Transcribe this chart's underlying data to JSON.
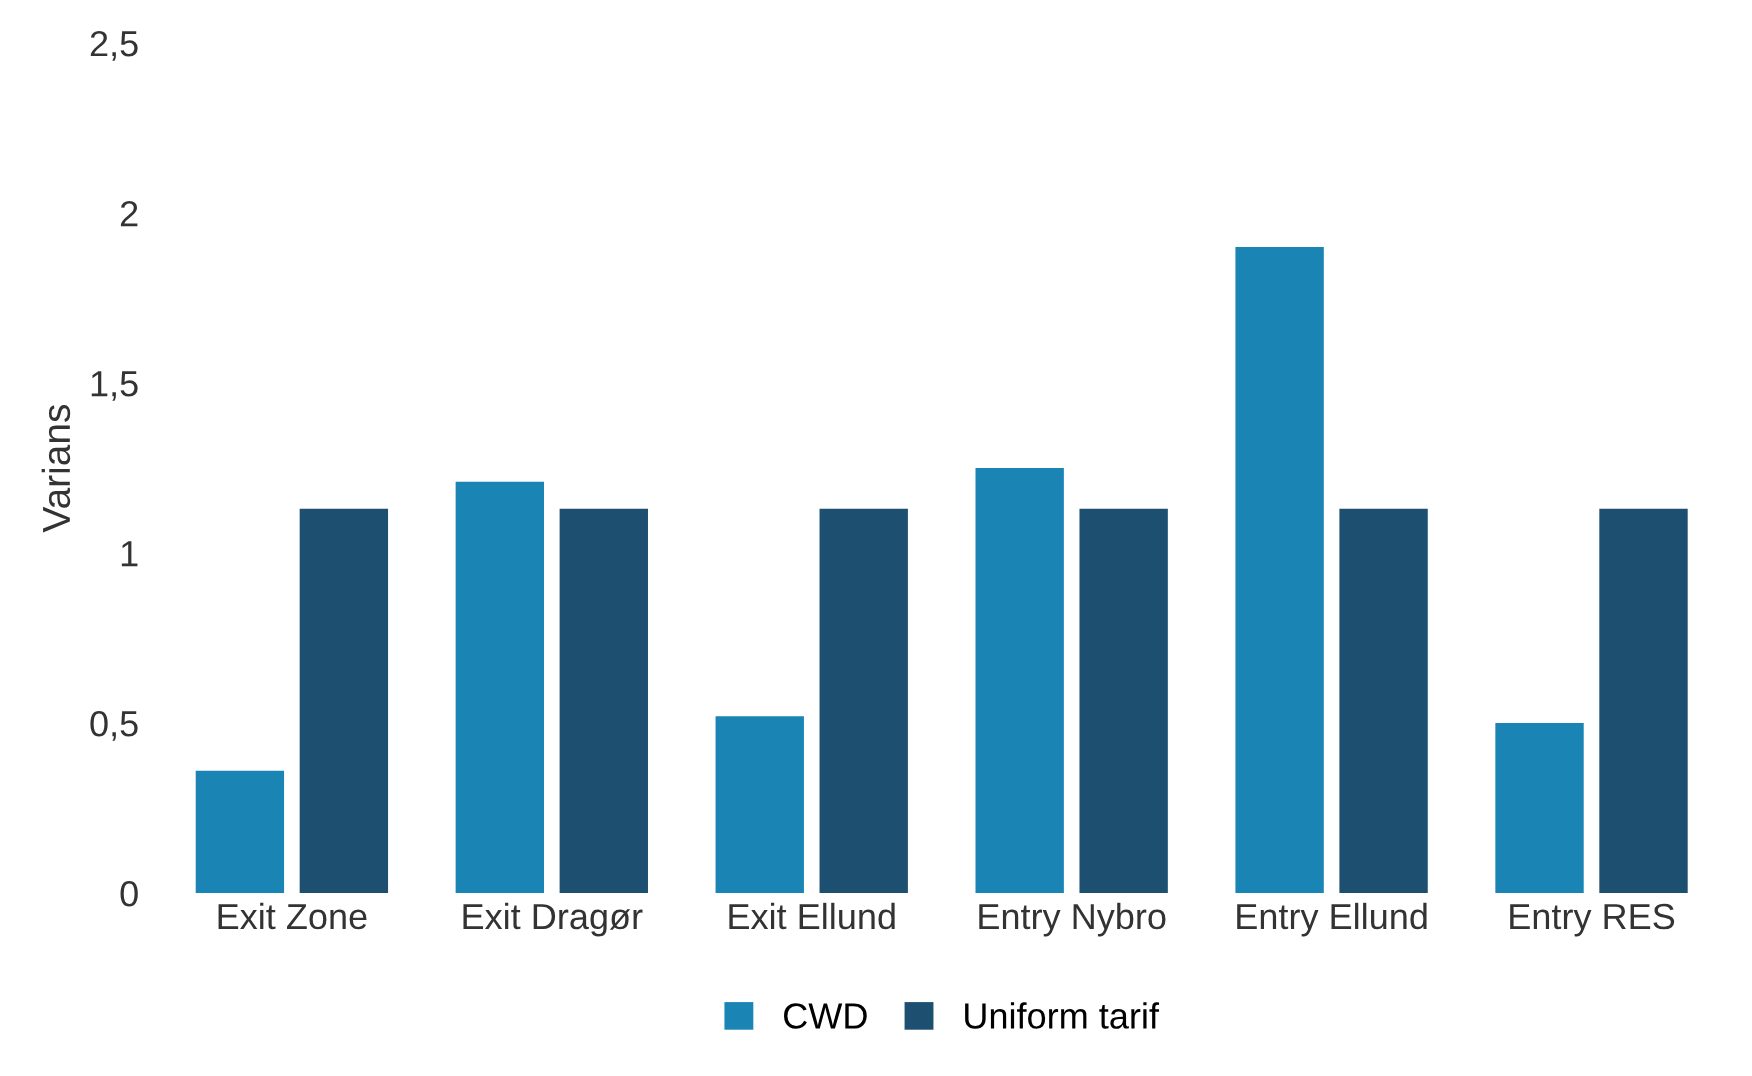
{
  "chart_data": {
    "type": "bar",
    "ylabel": "Varians",
    "categories": [
      "Exit Zone",
      "Exit Dragør",
      "Exit Ellund",
      "Entry Nybro",
      "Entry Ellund",
      "Entry RES"
    ],
    "series": [
      {
        "name": "CWD",
        "color": "#1a85b5",
        "values": [
          0.36,
          1.21,
          0.52,
          1.25,
          1.9,
          0.5
        ]
      },
      {
        "name": "Uniform tarif",
        "color": "#1d4f70",
        "values": [
          1.13,
          1.13,
          1.13,
          1.13,
          1.13,
          1.13
        ]
      }
    ],
    "ylim": [
      0,
      2.5
    ],
    "yticks": [
      0,
      {
        "value": 0.5,
        "label": "0,5"
      },
      1,
      {
        "value": 1.5,
        "label": "1,5"
      },
      2,
      {
        "value": 2.5,
        "label": "2,5"
      }
    ],
    "grid": false,
    "legend": "bottom"
  }
}
